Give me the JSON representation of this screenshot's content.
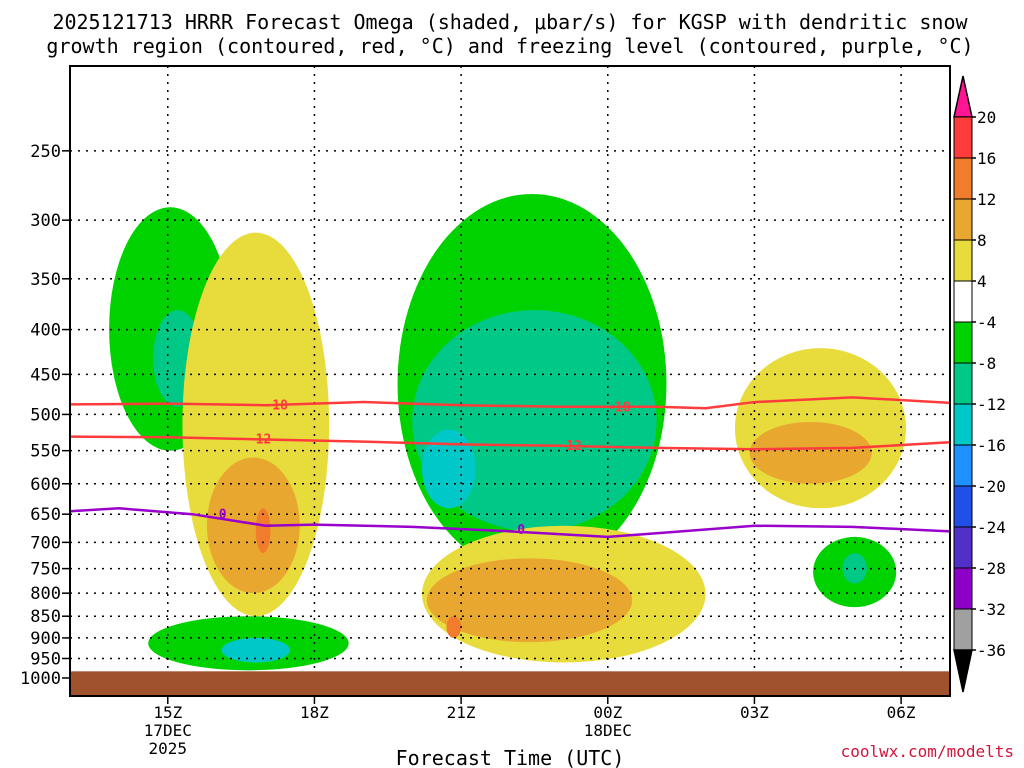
{
  "chart_data": {
    "type": "heatmap",
    "title_lines": [
      "2025121713 HRRR Forecast Omega (shaded, μbar/s) for KGSP with dendritic snow",
      "growth region (contoured, red, °C) and freezing level (contoured, purple, °C)"
    ],
    "xlabel": "Forecast Time (UTC)",
    "credit": "coolwx.com/modelts",
    "y_axis": {
      "label_ticks": [
        "250",
        "300",
        "350",
        "400",
        "450",
        "500",
        "550",
        "600",
        "650",
        "700",
        "750",
        "800",
        "850",
        "900",
        "950",
        "1000"
      ],
      "range_hpa": [
        200,
        1000
      ],
      "scale": "log-pressure"
    },
    "x_axis": {
      "range_hours": [
        13.0,
        31.0
      ],
      "ticks": [
        {
          "label": "15Z",
          "label2": "17DEC",
          "label3": "2025"
        },
        {
          "label": "18Z",
          "label2": "",
          "label3": ""
        },
        {
          "label": "21Z",
          "label2": "",
          "label3": ""
        },
        {
          "label": "00Z",
          "label2": "18DEC",
          "label3": ""
        },
        {
          "label": "03Z",
          "label2": "",
          "label3": ""
        },
        {
          "label": "06Z",
          "label2": "",
          "label3": ""
        }
      ],
      "tick_hours": [
        15,
        18,
        21,
        24,
        27,
        30
      ]
    },
    "colorbar": {
      "levels": [
        "20",
        "16",
        "12",
        "8",
        "4",
        "-4",
        "-8",
        "-12",
        "-16",
        "-20",
        "-24",
        "-28",
        "-32",
        "-36"
      ],
      "level_values": [
        20,
        16,
        12,
        8,
        4,
        -4,
        -8,
        -12,
        -16,
        -20,
        -24,
        -28,
        -32,
        -36
      ],
      "colors": [
        "#ff3c3c",
        "#f07c2c",
        "#e8a830",
        "#e8dc3c",
        "#ffffff",
        "#00d200",
        "#00c886",
        "#00c8c8",
        "#1e90ff",
        "#2050e8",
        "#5030c8",
        "#8c00c8",
        "#a0a0a0"
      ],
      "over_color": "#ff1493",
      "under_color": "#000000"
    },
    "omega_regions": [
      {
        "id": "ascent-left-upper",
        "color": "#00d200",
        "band": "-8 to -4",
        "hours": [
          13.8,
          16.3
        ],
        "pressure_hpa": [
          290,
          550
        ]
      },
      {
        "id": "ascent-left-core",
        "color": "#00c886",
        "band": "-12 to -8",
        "hours": [
          14.7,
          15.7
        ],
        "pressure_hpa": [
          380,
          490
        ]
      },
      {
        "id": "sink-column",
        "color": "#e8dc3c",
        "band": "4 to 8",
        "hours": [
          15.3,
          18.3
        ],
        "pressure_hpa": [
          310,
          850
        ]
      },
      {
        "id": "sink-column-core",
        "color": "#e8a830",
        "band": "8 to 12",
        "hours": [
          15.8,
          17.7
        ],
        "pressure_hpa": [
          560,
          800
        ]
      },
      {
        "id": "sink-column-max",
        "color": "#f07c2c",
        "band": "12 to 16",
        "hours": [
          16.8,
          17.1
        ],
        "pressure_hpa": [
          640,
          720
        ]
      },
      {
        "id": "ascent-central",
        "color": "#00d200",
        "band": "-8 to -4",
        "hours": [
          19.7,
          25.2
        ],
        "pressure_hpa": [
          280,
          760
        ]
      },
      {
        "id": "ascent-central-core",
        "color": "#00c886",
        "band": "-12 to -8",
        "hours": [
          20.0,
          25.0
        ],
        "pressure_hpa": [
          380,
          680
        ]
      },
      {
        "id": "ascent-central-max",
        "color": "#00c8c8",
        "band": "-16 to -12",
        "hours": [
          20.2,
          21.3
        ],
        "pressure_hpa": [
          520,
          640
        ]
      },
      {
        "id": "sink-lower",
        "color": "#e8dc3c",
        "band": "4 to 8",
        "hours": [
          20.2,
          26.0
        ],
        "pressure_hpa": [
          670,
          960
        ]
      },
      {
        "id": "sink-lower-core",
        "color": "#e8a830",
        "band": "8 to 12",
        "hours": [
          20.3,
          24.5
        ],
        "pressure_hpa": [
          730,
          910
        ]
      },
      {
        "id": "sink-lower-max",
        "color": "#f07c2c",
        "band": "12 to 16",
        "hours": [
          20.7,
          21.0
        ],
        "pressure_hpa": [
          850,
          900
        ]
      },
      {
        "id": "ascent-near-surface",
        "color": "#00d200",
        "band": "-8 to -4",
        "hours": [
          14.6,
          18.7
        ],
        "pressure_hpa": [
          850,
          980
        ]
      },
      {
        "id": "ascent-near-surface-core",
        "color": "#00c8c8",
        "band": "-16 to -12",
        "hours": [
          16.1,
          17.5
        ],
        "pressure_hpa": [
          900,
          960
        ]
      },
      {
        "id": "sink-right",
        "color": "#e8dc3c",
        "band": "4 to 8",
        "hours": [
          26.6,
          30.1
        ],
        "pressure_hpa": [
          420,
          640
        ]
      },
      {
        "id": "sink-right-core",
        "color": "#e8a830",
        "band": "8 to 12",
        "hours": [
          26.9,
          29.4
        ],
        "pressure_hpa": [
          510,
          600
        ]
      },
      {
        "id": "ascent-right-lower",
        "color": "#00d200",
        "band": "-8 to -4",
        "hours": [
          28.2,
          29.9
        ],
        "pressure_hpa": [
          690,
          830
        ]
      },
      {
        "id": "ascent-right-lower-core",
        "color": "#00c886",
        "band": "-12 to -8",
        "hours": [
          28.8,
          29.3
        ],
        "pressure_hpa": [
          720,
          780
        ]
      }
    ],
    "contours": [
      {
        "name": "dendritic-growth-top",
        "label": "-18",
        "color": "#ff3c3c",
        "units": "°C",
        "hours": [
          13.0,
          15.0,
          17.0,
          19.0,
          21.0,
          23.0,
          25.0,
          26.0,
          27.0,
          29.0,
          31.0
        ],
        "pressure_hpa": [
          487,
          486,
          488,
          484,
          488,
          490,
          490,
          492,
          484,
          478,
          485
        ]
      },
      {
        "name": "dendritic-growth-bottom",
        "label": "-12",
        "color": "#ff3c3c",
        "units": "°C",
        "hours": [
          13.0,
          15.0,
          17.0,
          19.0,
          21.0,
          23.0,
          25.0,
          27.0,
          29.0,
          31.0
        ],
        "pressure_hpa": [
          530,
          531,
          534,
          537,
          541,
          543,
          546,
          548,
          546,
          538
        ]
      },
      {
        "name": "freezing-level",
        "label": "0",
        "color": "#9900cc",
        "units": "°C",
        "hours": [
          13.0,
          14.0,
          15.5,
          17.0,
          18.0,
          20.0,
          22.0,
          24.0,
          25.5,
          27.0,
          29.0,
          31.0
        ],
        "pressure_hpa": [
          645,
          640,
          650,
          670,
          668,
          672,
          680,
          690,
          680,
          670,
          672,
          680
        ]
      }
    ],
    "terrain": {
      "color": "#a0522d",
      "top_pressure_hpa": 980
    }
  }
}
